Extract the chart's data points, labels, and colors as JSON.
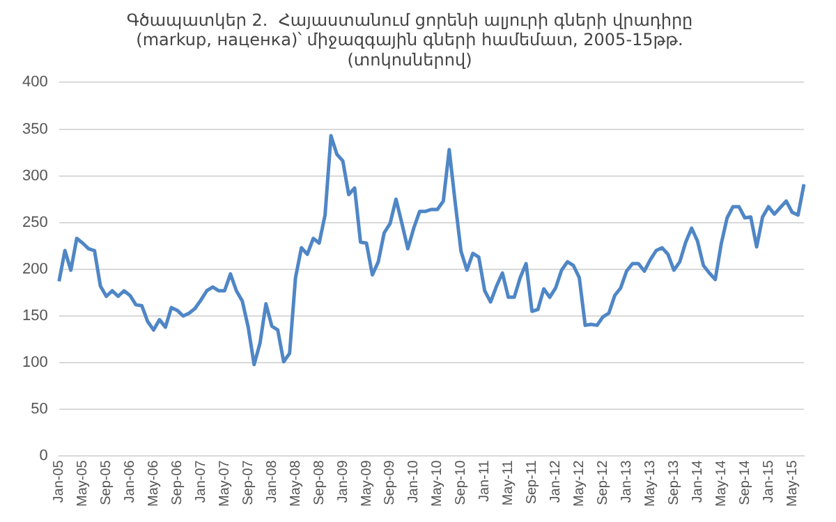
{
  "chart_data": {
    "type": "line",
    "title": [
      "Գծապատկեր 2.  Հայաստանում ցորենի ալյուրի գների վրադիրը",
      "(markup, наценка)՝ միջազգային գների համեմատ, 2005-15թթ.",
      "(տոկոսներով)"
    ],
    "categories": [
      "Jan-05",
      null,
      null,
      null,
      "May-05",
      null,
      null,
      null,
      "Sep-05",
      null,
      null,
      null,
      "Jan-06",
      null,
      null,
      null,
      "May-06",
      null,
      null,
      null,
      "Sep-06",
      null,
      null,
      null,
      "Jan-07",
      null,
      null,
      null,
      "May-07",
      null,
      null,
      null,
      "Sep-07",
      null,
      null,
      null,
      "Jan-08",
      null,
      null,
      null,
      "May-08",
      null,
      null,
      null,
      "Sep-08",
      null,
      null,
      null,
      "Jan-09",
      null,
      null,
      null,
      "May-09",
      null,
      null,
      null,
      "Sep-09",
      null,
      null,
      null,
      "Jan-10",
      null,
      null,
      null,
      "May-10",
      null,
      null,
      null,
      "Sep-10",
      null,
      null,
      null,
      "Jan-11",
      null,
      null,
      null,
      "May-11",
      null,
      null,
      null,
      "Sep-11",
      null,
      null,
      null,
      "Jan-12",
      null,
      null,
      null,
      "May-12",
      null,
      null,
      null,
      "Sep-12",
      null,
      null,
      null,
      "Jan-13",
      null,
      null,
      null,
      "May-13",
      null,
      null,
      null,
      "Sep-13",
      null,
      null,
      null,
      "Jan-14",
      null,
      null,
      null,
      "May-14",
      null,
      null,
      null,
      "Sep-14",
      null,
      null,
      null,
      "Jan-15",
      null,
      null,
      null,
      "May-15",
      null,
      null
    ],
    "series": [
      {
        "color": "#4f86c6",
        "values": [
          187,
          220,
          199,
          233,
          228,
          222,
          220,
          182,
          171,
          177,
          171,
          177,
          172,
          162,
          161,
          144,
          135,
          146,
          138,
          159,
          156,
          150,
          153,
          158,
          167,
          177,
          181,
          177,
          177,
          195,
          177,
          166,
          138,
          98,
          121,
          163,
          139,
          135,
          101,
          110,
          191,
          223,
          216,
          233,
          228,
          258,
          343,
          323,
          316,
          280,
          287,
          229,
          228,
          194,
          208,
          239,
          249,
          275,
          249,
          222,
          244,
          262,
          262,
          264,
          264,
          273,
          328,
          272,
          219,
          199,
          217,
          213,
          177,
          165,
          182,
          196,
          170,
          170,
          191,
          206,
          155,
          157,
          179,
          170,
          180,
          199,
          208,
          204,
          191,
          140,
          141,
          140,
          149,
          153,
          172,
          180,
          198,
          206,
          206,
          198,
          210,
          220,
          223,
          216,
          199,
          208,
          229,
          244,
          230,
          204,
          196,
          189,
          227,
          255,
          267,
          267,
          255,
          256,
          224,
          256,
          267,
          259,
          266,
          273,
          261,
          258,
          291
        ]
      }
    ],
    "ylim": [
      0,
      400
    ],
    "yticks": [
      0,
      50,
      100,
      150,
      200,
      250,
      300,
      350,
      400
    ],
    "grid": "y",
    "legend": false,
    "marker": "none",
    "line_style": "solid"
  }
}
